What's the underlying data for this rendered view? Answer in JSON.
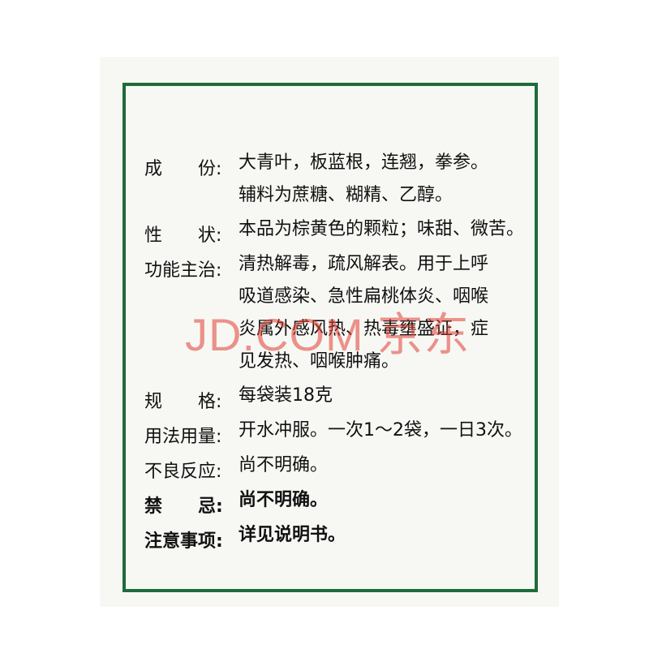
{
  "rows": [
    {
      "label": "成　　份:",
      "lines": [
        "大青叶，板蓝根，连翘，拳参。",
        "辅料为蔗糖、糊精、乙醇。"
      ]
    },
    {
      "label": "性　　状:",
      "lines": [
        "本品为棕黄色的颗粒；味甜、微苦。"
      ]
    },
    {
      "label": "功能主治:",
      "lines": [
        "清热解毒，疏风解表。用于上呼",
        "吸道感染、急性扁桃体炎、咽喉",
        "炎属外感风热、热毒壅盛证，症",
        "见发热、咽喉肿痛。"
      ]
    },
    {
      "label": "规　　格:",
      "lines": [
        "每袋装18克"
      ]
    },
    {
      "label": "用法用量:",
      "lines": [
        "开水冲服。一次1～2袋，一日3次。"
      ]
    },
    {
      "label": "不良反应:",
      "lines": [
        "尚不明确。"
      ]
    },
    {
      "label": "禁　　忌:",
      "lines": [
        "尚不明确。"
      ]
    },
    {
      "label": "注意事项:",
      "lines": [
        "详见说明书。"
      ]
    }
  ],
  "watermark": "JD.COM 京东",
  "colors": {
    "frame": "#1f6b3a",
    "watermark": "#e23c32"
  }
}
